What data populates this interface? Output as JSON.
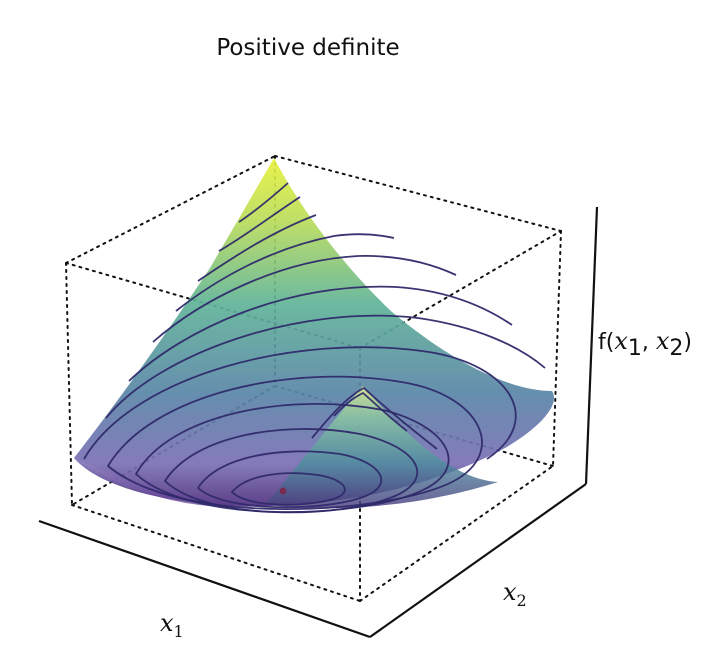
{
  "title": "Positive definite",
  "axes": {
    "x1": {
      "base": "x",
      "sub": "1"
    },
    "x2": {
      "base": "x",
      "sub": "2"
    },
    "z": {
      "prefix": "f(",
      "x": "x",
      "sub1": "1",
      "comma": ", ",
      "sub2": "2",
      "suffix": ")"
    }
  },
  "colors": {
    "surface_top": "#d7e84a",
    "surface_mid": "#4f98a7",
    "surface_low": "#6b5aa4",
    "surface_bottom": "#47306e",
    "contour": "#2f2a6a",
    "minimum_marker": "#7a294f"
  }
}
